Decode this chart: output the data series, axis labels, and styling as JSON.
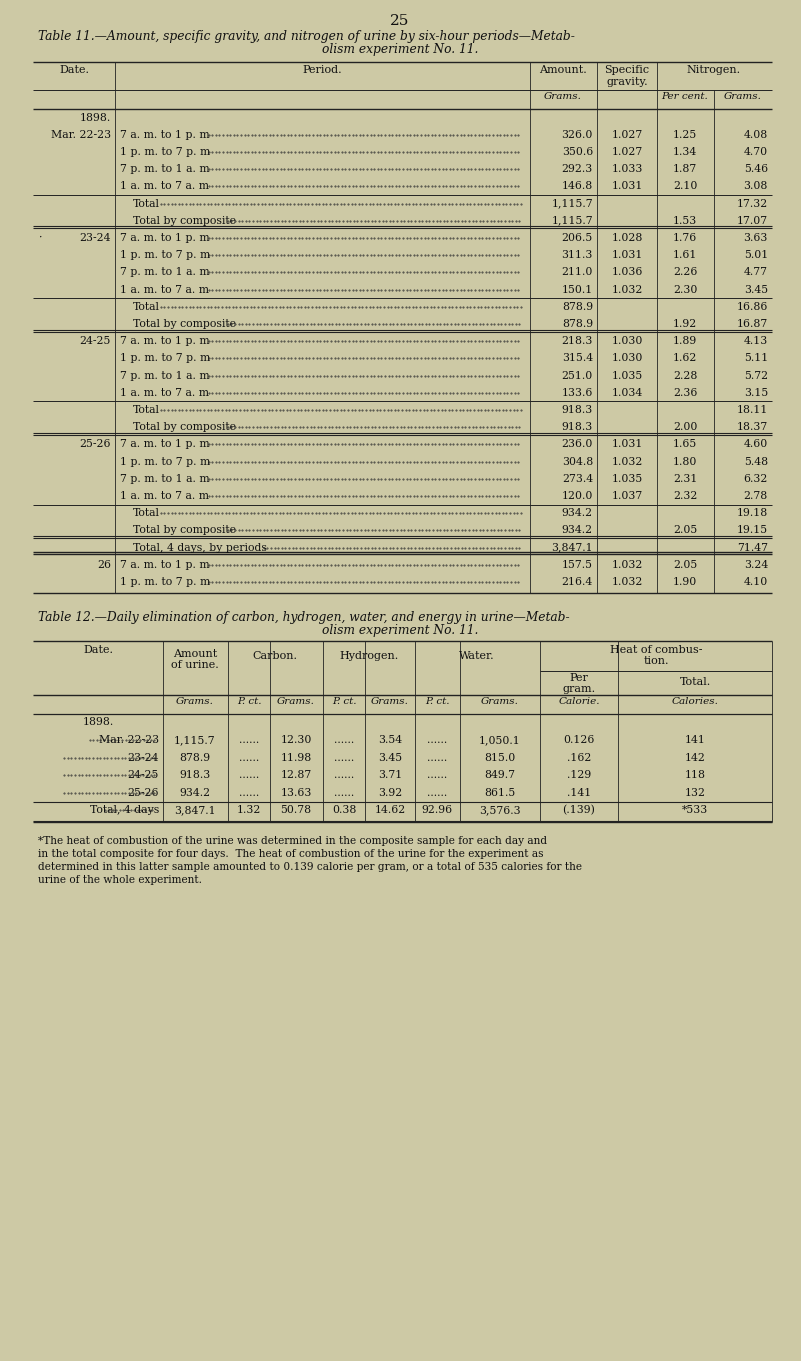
{
  "page_number": "25",
  "bg_color": "#cdc9a5",
  "table1": {
    "title_line1": "Table 11.—Amount, specific gravity, and nitrogen of urine by six-hour periods—Metab-",
    "title_line2": "olism experiment No. 11.",
    "rows": [
      [
        "1898.",
        "",
        "",
        "",
        "",
        ""
      ],
      [
        "Mar. 22-23",
        "7 a. m. to 1 p. m",
        "326.0",
        "1.027",
        "1.25",
        "4.08"
      ],
      [
        "",
        "1 p. m. to 7 p. m",
        "350.6",
        "1.027",
        "1.34",
        "4.70"
      ],
      [
        "",
        "7 p. m. to 1 a. m",
        "292.3",
        "1.033",
        "1.87",
        "5.46"
      ],
      [
        "",
        "1 a. m. to 7 a. m",
        "146.8",
        "1.031",
        "2.10",
        "3.08"
      ],
      [
        "",
        "Total",
        "1,115.7",
        "",
        "",
        "17.32"
      ],
      [
        "",
        "Total by composite",
        "1,115.7",
        "",
        "1.53",
        "17.07"
      ],
      [
        "·23-24",
        "7 a. m. to 1 p. m",
        "206.5",
        "1.028",
        "1.76",
        "3.63"
      ],
      [
        "",
        "1 p. m. to 7 p. m",
        "311.3",
        "1.031",
        "1.61",
        "5.01"
      ],
      [
        "",
        "7 p. m. to 1 a. m",
        "211.0",
        "1.036",
        "2.26",
        "4.77"
      ],
      [
        "",
        "1 a. m. to 7 a. m",
        "150.1",
        "1.032",
        "2.30",
        "3.45"
      ],
      [
        "",
        "Total",
        "878.9",
        "",
        "",
        "16.86"
      ],
      [
        "",
        "Total by composite",
        "878.9",
        "",
        "1.92",
        "16.87"
      ],
      [
        "24-25",
        "7 a. m. to 1 p. m",
        "218.3",
        "1.030",
        "1.89",
        "4.13"
      ],
      [
        "",
        "1 p. m. to 7 p. m",
        "315.4",
        "1.030",
        "1.62",
        "5.11"
      ],
      [
        "",
        "7 p. m. to 1 a. m",
        "251.0",
        "1.035",
        "2.28",
        "5.72"
      ],
      [
        "",
        "1 a. m. to 7 a. m",
        "133.6",
        "1.034",
        "2.36",
        "3.15"
      ],
      [
        "",
        "Total",
        "918.3",
        "",
        "",
        "18.11"
      ],
      [
        "",
        "Total by composite",
        "918.3",
        "",
        "2.00",
        "18.37"
      ],
      [
        "25-26",
        "7 a. m. to 1 p. m",
        "236.0",
        "1.031",
        "1.65",
        "4.60"
      ],
      [
        "",
        "1 p. m. to 7 p. m",
        "304.8",
        "1.032",
        "1.80",
        "5.48"
      ],
      [
        "",
        "7 p. m. to 1 a. m",
        "273.4",
        "1.035",
        "2.31",
        "6.32"
      ],
      [
        "",
        "1 a. m. to 7 a. m",
        "120.0",
        "1.037",
        "2.32",
        "2.78"
      ],
      [
        "",
        "Total",
        "934.2",
        "",
        "",
        "19.18"
      ],
      [
        "",
        "Total by composite",
        "934.2",
        "",
        "2.05",
        "19.15"
      ],
      [
        "",
        "Total, 4 days, by periods",
        "3,847.1",
        "",
        "",
        "71.47"
      ],
      [
        "26",
        "7 a. m. to 1 p. m",
        "157.5",
        "1.032",
        "2.05",
        "3.24"
      ],
      [
        "",
        "1 p. m. to 7 p. m",
        "216.4",
        "1.032",
        "1.90",
        "4.10"
      ]
    ]
  },
  "table2": {
    "title_line1": "Table 12.—Daily elimination of carbon, hydrogen, water, and energy in urine—Metab-",
    "title_line2": "olism experiment No. 11.",
    "data_rows": [
      [
        "Mar. 22-23",
        "1,115.7",
        "......",
        "12.30",
        "......",
        "3.54",
        "......",
        "1,050.1",
        "0.126",
        "141"
      ],
      [
        "23-24",
        "878.9",
        "......",
        "11.98",
        "......",
        "3.45",
        "......",
        "815.0",
        ".162",
        "142"
      ],
      [
        "24-25",
        "918.3",
        "......",
        "12.87",
        "......",
        "3.71",
        "......",
        "849.7",
        ".129",
        "118"
      ],
      [
        "25-26",
        "934.2",
        "......",
        "13.63",
        "......",
        "3.92",
        "......",
        "861.5",
        ".141",
        "132"
      ],
      [
        "Total, 4 days",
        "3,847.1",
        "1.32",
        "50.78",
        "0.38",
        "14.62",
        "92.96",
        "3,576.3",
        "(.139)",
        "*533"
      ]
    ]
  },
  "footnote_lines": [
    "*The heat of combustion of the urine was determined in the composite sample for each day and",
    "in the total composite for four days.  The heat of combustion of the urine for the experiment as",
    "determined in this latter sample amounted to 0.139 calorie per gram, or a total of 535 calories for the",
    "urine of the whole experiment."
  ]
}
